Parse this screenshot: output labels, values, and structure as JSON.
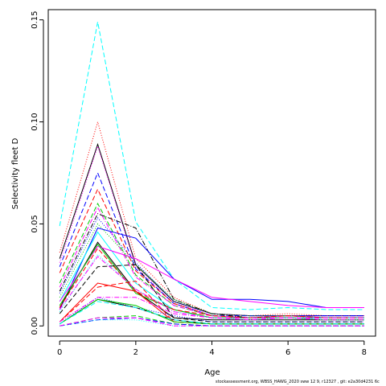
{
  "chart_data": {
    "type": "line",
    "xlabel": "Age",
    "ylabel": "Selectivity fleet D",
    "xlim": [
      -0.3,
      8.3
    ],
    "ylim": [
      -0.005,
      0.155
    ],
    "x_ticks": [
      0,
      2,
      4,
      6,
      8
    ],
    "x_tick_labels": [
      "0",
      "2",
      "4",
      "6",
      "8"
    ],
    "y_ticks": [
      0.0,
      0.05,
      0.1,
      0.15
    ],
    "y_tick_labels": [
      "0.00",
      "0.05",
      "0.10",
      "0.15"
    ],
    "x": [
      0,
      1,
      2,
      3,
      4,
      5,
      6,
      7,
      8
    ],
    "series": [
      {
        "color": "#00ffff",
        "dash": "6,3",
        "values": [
          0.049,
          0.149,
          0.051,
          0.023,
          0.009,
          0.008,
          0.009,
          0.008,
          0.008
        ]
      },
      {
        "color": "#ff0000",
        "dash": "1,2",
        "values": [
          0.036,
          0.1,
          0.033,
          0.014,
          0.006,
          0.005,
          0.006,
          0.005,
          0.005
        ]
      },
      {
        "color": "#000000",
        "dash": "",
        "values": [
          0.033,
          0.089,
          0.03,
          0.012,
          0.006,
          0.005,
          0.005,
          0.005,
          0.005
        ]
      },
      {
        "color": "#ff00ff",
        "dash": "1,2",
        "values": [
          0.031,
          0.088,
          0.029,
          0.011,
          0.006,
          0.005,
          0.005,
          0.005,
          0.005
        ]
      },
      {
        "color": "#0000ff",
        "dash": "6,3",
        "values": [
          0.029,
          0.075,
          0.028,
          0.011,
          0.005,
          0.005,
          0.005,
          0.005,
          0.005
        ]
      },
      {
        "color": "#ff0000",
        "dash": "6,3",
        "values": [
          0.026,
          0.067,
          0.027,
          0.011,
          0.005,
          0.004,
          0.005,
          0.004,
          0.004
        ]
      },
      {
        "color": "#00cd00",
        "dash": "6,3",
        "values": [
          0.021,
          0.06,
          0.025,
          0.01,
          0.005,
          0.004,
          0.005,
          0.004,
          0.004
        ]
      },
      {
        "color": "#ff00ff",
        "dash": "6,2,1,2",
        "values": [
          0.019,
          0.058,
          0.024,
          0.01,
          0.005,
          0.004,
          0.005,
          0.004,
          0.004
        ]
      },
      {
        "color": "#000000",
        "dash": "6,2,1,2",
        "values": [
          0.017,
          0.055,
          0.048,
          0.013,
          0.006,
          0.004,
          0.004,
          0.004,
          0.004
        ]
      },
      {
        "color": "#0000ff",
        "dash": "1,2",
        "values": [
          0.016,
          0.053,
          0.031,
          0.012,
          0.006,
          0.005,
          0.005,
          0.005,
          0.005
        ]
      },
      {
        "color": "#00cd00",
        "dash": "1,2",
        "values": [
          0.014,
          0.05,
          0.03,
          0.013,
          0.006,
          0.005,
          0.005,
          0.004,
          0.004
        ]
      },
      {
        "color": "#0000ff",
        "dash": "",
        "values": [
          0.008,
          0.048,
          0.043,
          0.023,
          0.013,
          0.013,
          0.012,
          0.009,
          0.009
        ]
      },
      {
        "color": "#00ffff",
        "dash": "",
        "values": [
          0.012,
          0.046,
          0.021,
          0.008,
          0.004,
          0.004,
          0.004,
          0.004,
          0.004
        ]
      },
      {
        "color": "#000000",
        "dash": "",
        "values": [
          0.009,
          0.041,
          0.017,
          0.004,
          0.003,
          0.003,
          0.003,
          0.003,
          0.003
        ]
      },
      {
        "color": "#ff00ff",
        "dash": "",
        "values": [
          0.012,
          0.039,
          0.033,
          0.023,
          0.014,
          0.012,
          0.01,
          0.009,
          0.009
        ]
      },
      {
        "color": "#00cd00",
        "dash": "",
        "values": [
          0.01,
          0.04,
          0.016,
          0.008,
          0.004,
          0.004,
          0.004,
          0.003,
          0.003
        ]
      },
      {
        "color": "#ff0000",
        "dash": "6,3",
        "values": [
          0.009,
          0.038,
          0.017,
          0.008,
          0.005,
          0.004,
          0.005,
          0.004,
          0.004
        ]
      },
      {
        "color": "#00ffff",
        "dash": "1,2",
        "values": [
          0.007,
          0.035,
          0.018,
          0.007,
          0.004,
          0.003,
          0.004,
          0.003,
          0.003
        ]
      },
      {
        "color": "#ff00ff",
        "dash": "6,2,1,2",
        "values": [
          0.008,
          0.034,
          0.018,
          0.007,
          0.004,
          0.004,
          0.004,
          0.004,
          0.004
        ]
      },
      {
        "color": "#000000",
        "dash": "6,3",
        "values": [
          0.006,
          0.029,
          0.03,
          0.004,
          0.002,
          0.002,
          0.002,
          0.002,
          0.002
        ]
      },
      {
        "color": "#ff0000",
        "dash": "",
        "values": [
          0.002,
          0.021,
          0.017,
          0.002,
          0.001,
          0.001,
          0.001,
          0.001,
          0.001
        ]
      },
      {
        "color": "#ff0000",
        "dash": "6,3",
        "values": [
          0.002,
          0.019,
          0.022,
          0.002,
          0.001,
          0.001,
          0.001,
          0.001,
          0.001
        ]
      },
      {
        "color": "#0000ff",
        "dash": "1,2",
        "values": [
          0.001,
          0.014,
          0.009,
          0.005,
          0.002,
          0.002,
          0.002,
          0.002,
          0.002
        ]
      },
      {
        "color": "#ff00ff",
        "dash": "6,2,1,2",
        "values": [
          0.002,
          0.014,
          0.014,
          0.006,
          0.004,
          0.003,
          0.004,
          0.003,
          0.003
        ]
      },
      {
        "color": "#000000",
        "dash": "",
        "values": [
          0.001,
          0.013,
          0.009,
          0.003,
          0.001,
          0.001,
          0.001,
          0.001,
          0.001
        ]
      },
      {
        "color": "#00cd00",
        "dash": "",
        "values": [
          0.001,
          0.013,
          0.01,
          0.002,
          0.001,
          0.001,
          0.001,
          0.001,
          0.001
        ]
      },
      {
        "color": "#00ffff",
        "dash": "6,3",
        "values": [
          0.001,
          0.012,
          0.009,
          0.003,
          0.001,
          0.001,
          0.001,
          0.001,
          0.001
        ]
      },
      {
        "color": "#00cd00",
        "dash": "6,3",
        "values": [
          0.0,
          0.004,
          0.005,
          0.001,
          0.0,
          0.0,
          0.0,
          0.0,
          0.0
        ]
      },
      {
        "color": "#0000ff",
        "dash": "6,3",
        "values": [
          0.0,
          0.003,
          0.004,
          0.001,
          0.0,
          0.0,
          0.0,
          0.0,
          0.0
        ]
      },
      {
        "color": "#00ffff",
        "dash": "1,2",
        "values": [
          0.0,
          0.003,
          0.003,
          0.0,
          0.0,
          0.0,
          0.0,
          0.0,
          0.0
        ]
      },
      {
        "color": "#ff00ff",
        "dash": "6,3",
        "values": [
          0.0,
          0.004,
          0.004,
          0.0,
          0.0,
          0.0,
          0.0,
          0.0,
          0.0
        ]
      }
    ]
  },
  "caption": "stockassessment.org, WBSS_HAWG_2020 sww 12 9, r12327 , git: e2a30d4231 6c"
}
